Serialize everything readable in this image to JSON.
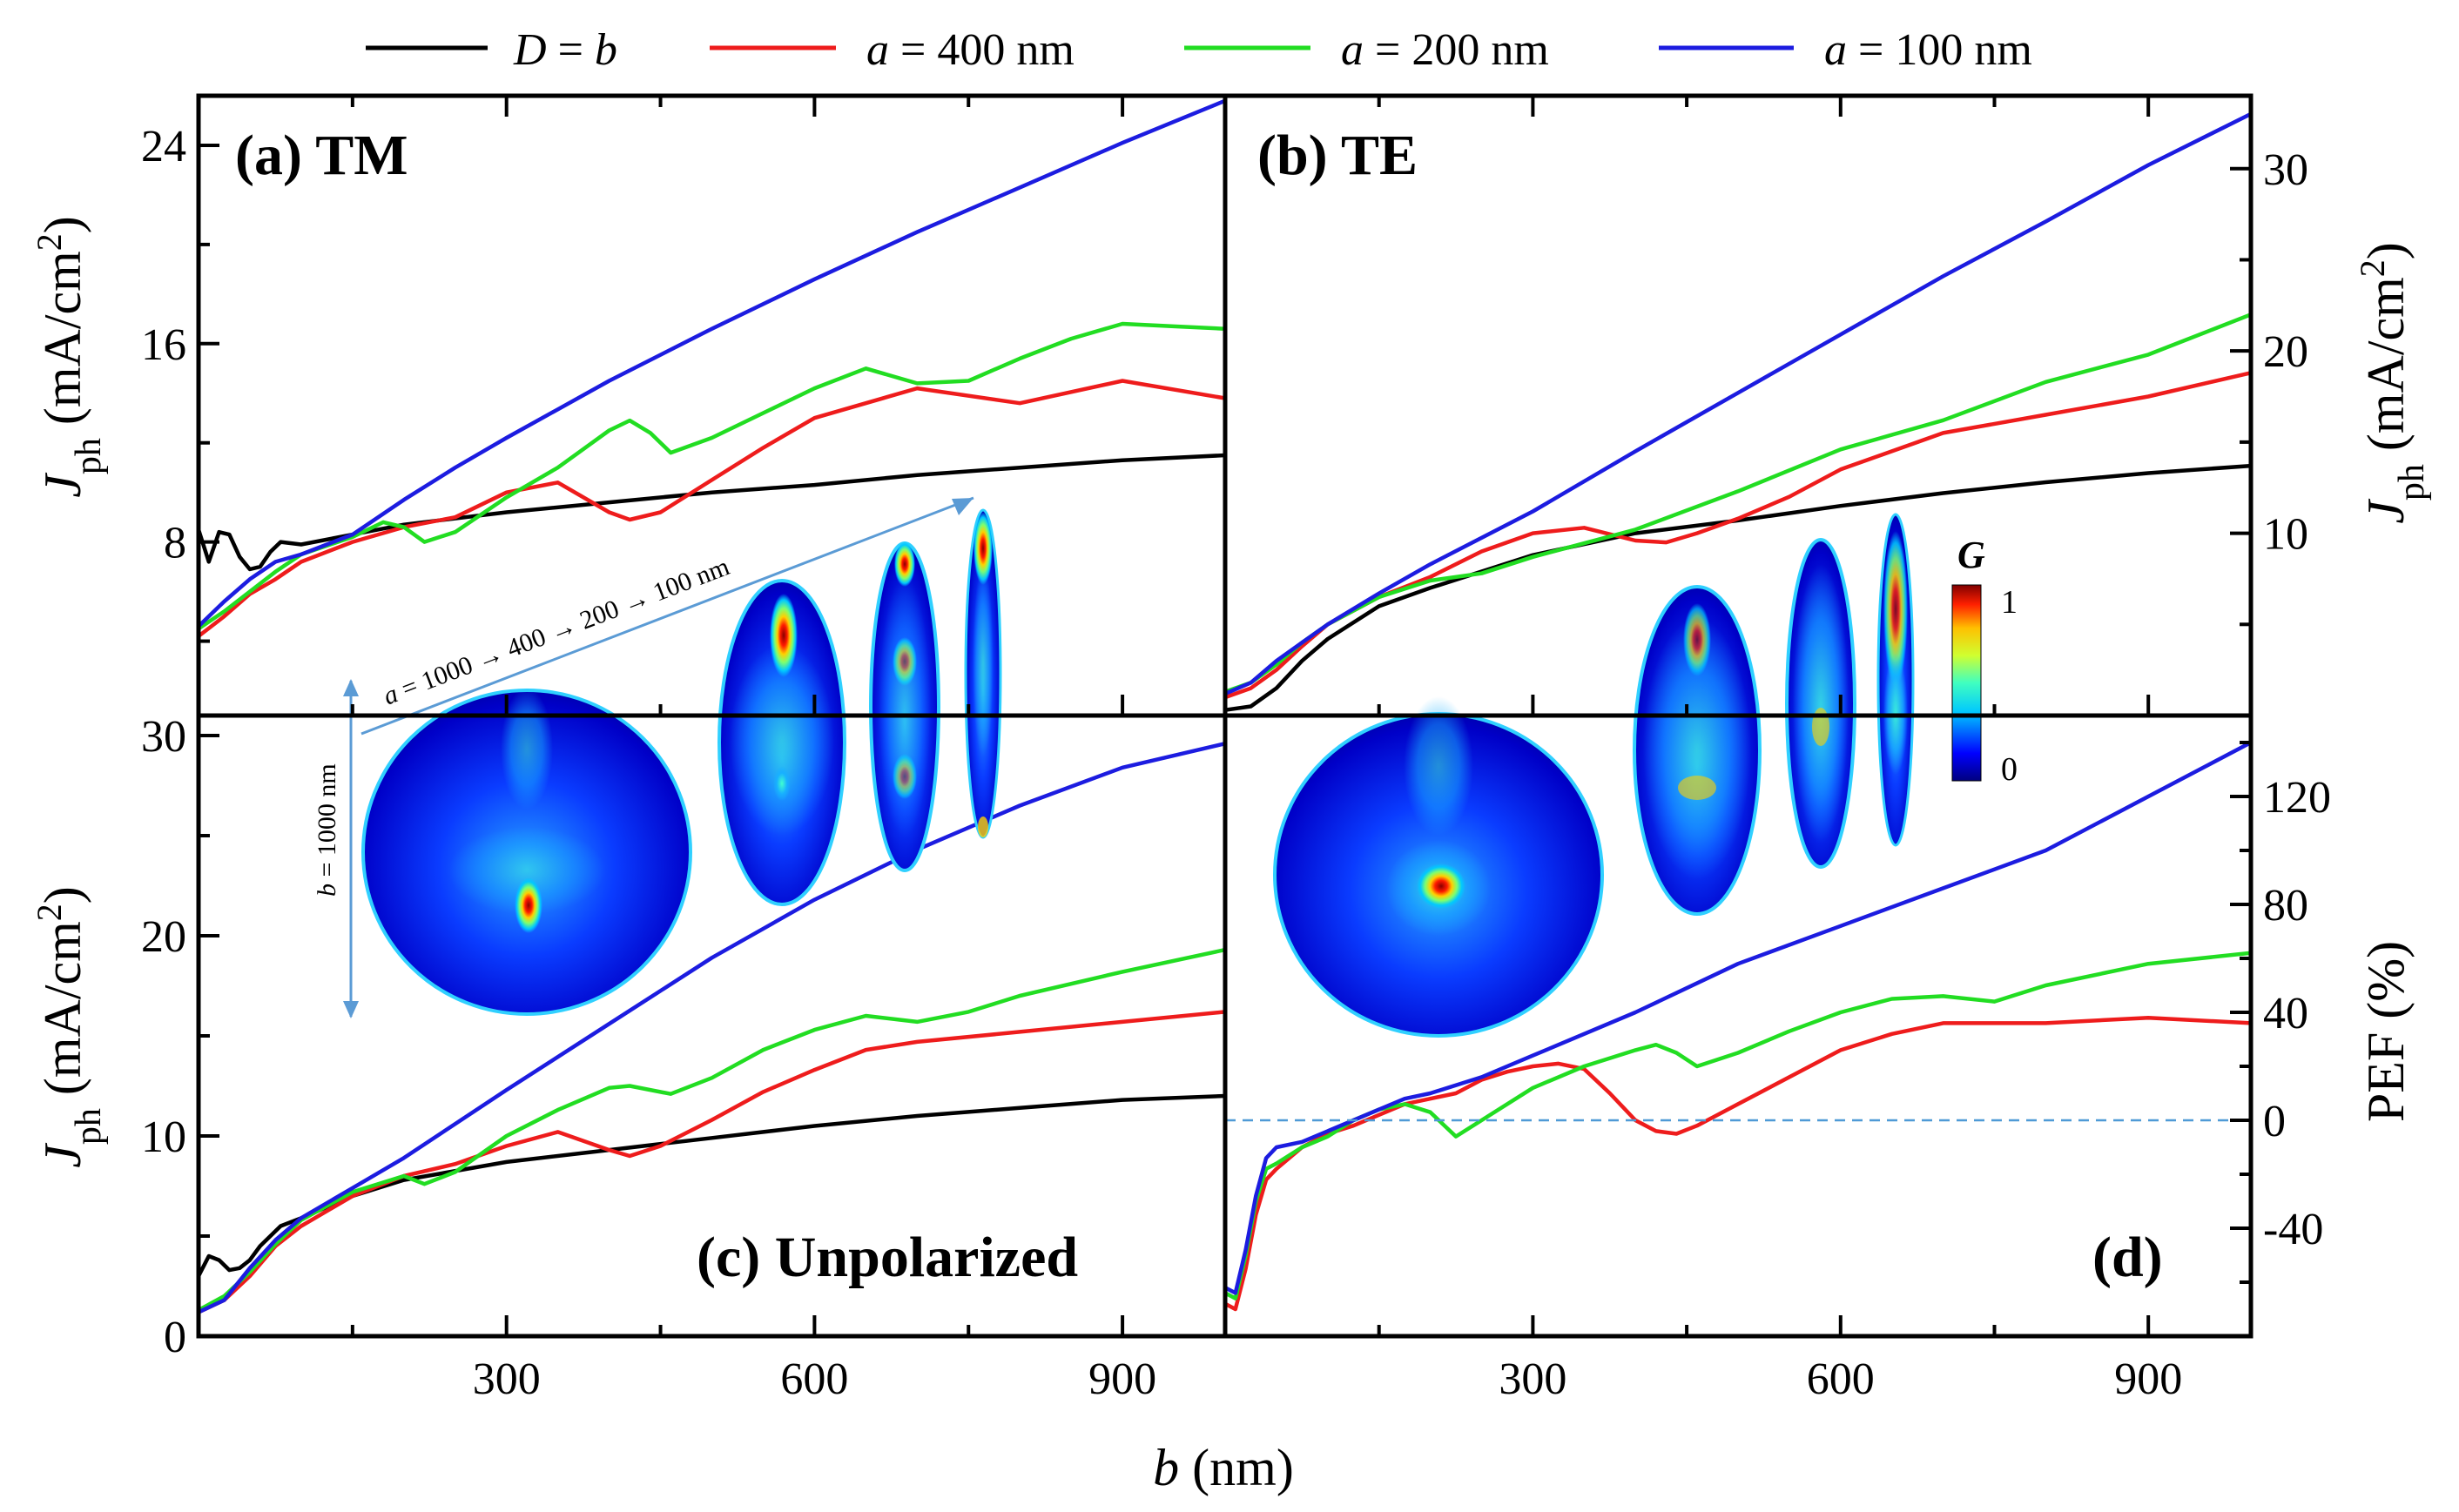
{
  "legend": [
    {
      "label_parts": [
        {
          "t": "D",
          "i": true
        },
        {
          "t": " = "
        },
        {
          "t": "b",
          "i": true
        }
      ],
      "color": "#000000",
      "key": "D_eq_b"
    },
    {
      "label_parts": [
        {
          "t": "a",
          "i": true
        },
        {
          "t": " = 400 nm"
        }
      ],
      "color": "#ee1c1c",
      "key": "a400"
    },
    {
      "label_parts": [
        {
          "t": "a",
          "i": true
        },
        {
          "t": " = 200 nm"
        }
      ],
      "color": "#22dd22",
      "key": "a200"
    },
    {
      "label_parts": [
        {
          "t": "a",
          "i": true
        },
        {
          "t": " = 100 nm"
        }
      ],
      "color": "#1c1ce0",
      "key": "a100"
    }
  ],
  "axes": {
    "xlabel_var": "b",
    "xlabel_unit": " (nm)",
    "x_ticks": [
      "300",
      "600",
      "900"
    ],
    "y_left_var": "J",
    "y_left_sub": "ph",
    "y_left_unit": " (mA/cm",
    "y_left_sup": "2",
    "y_left_close": ")",
    "y_right_pef": "PEF (%)",
    "ticks_a": [
      "8",
      "16",
      "24"
    ],
    "ticks_b": [
      "10",
      "20",
      "30"
    ],
    "ticks_c": [
      "0",
      "10",
      "20",
      "30"
    ],
    "ticks_d": [
      "-40",
      "0",
      "40",
      "80",
      "120"
    ]
  },
  "panels": {
    "a": "(a) TM",
    "b": "(b) TE",
    "c": "(c) Unpolarized",
    "d": "(d)"
  },
  "inset": {
    "arrow_text_parts": [
      {
        "t": "a",
        "i": true
      },
      {
        "t": " = 1000 → 400 → 200 → 100 nm"
      }
    ],
    "b_label_parts": [
      {
        "t": "b",
        "i": true
      },
      {
        "t": " = 1000 nm"
      }
    ],
    "colorbar_title": "G",
    "colorbar_max": "1",
    "colorbar_min": "0",
    "colormap": [
      "#00007f",
      "#0000ff",
      "#00c8ff",
      "#00ffd0",
      "#c8ff30",
      "#ffd000",
      "#ff3000",
      "#7f0000"
    ]
  },
  "chart_data": [
    {
      "type": "line",
      "title": "(a) TM",
      "xlabel": "b (nm)",
      "ylabel": "Jph (mA/cm2)",
      "xlim": [
        0,
        1000
      ],
      "ylim": [
        1,
        26
      ],
      "series": [
        {
          "name": "D = b",
          "x": [
            0,
            10,
            20,
            30,
            40,
            50,
            60,
            70,
            80,
            100,
            150,
            200,
            300,
            400,
            500,
            600,
            700,
            800,
            900,
            1000
          ],
          "y": [
            8.5,
            7.2,
            8.4,
            8.3,
            7.4,
            6.9,
            7.0,
            7.6,
            8.0,
            7.9,
            8.3,
            8.7,
            9.2,
            9.6,
            10.0,
            10.3,
            10.7,
            11.0,
            11.3,
            11.5
          ]
        },
        {
          "name": "a = 400 nm",
          "x": [
            0,
            25,
            50,
            75,
            100,
            150,
            200,
            250,
            300,
            350,
            400,
            420,
            450,
            500,
            550,
            600,
            700,
            800,
            900,
            1000
          ],
          "y": [
            4.2,
            5.0,
            5.9,
            6.5,
            7.2,
            8.0,
            8.6,
            9.0,
            10.0,
            10.4,
            9.2,
            8.9,
            9.2,
            10.5,
            11.8,
            13.0,
            14.2,
            13.6,
            14.5,
            13.8
          ]
        },
        {
          "name": "a = 200 nm",
          "x": [
            0,
            25,
            50,
            75,
            100,
            150,
            180,
            200,
            220,
            250,
            300,
            350,
            400,
            420,
            440,
            460,
            500,
            550,
            600,
            650,
            700,
            750,
            800,
            850,
            900,
            950,
            1000
          ],
          "y": [
            4.5,
            5.2,
            6.0,
            6.8,
            7.5,
            8.2,
            8.8,
            8.6,
            8.0,
            8.4,
            9.8,
            11.0,
            12.5,
            12.9,
            12.4,
            11.6,
            12.2,
            13.2,
            14.2,
            15.0,
            14.4,
            14.5,
            15.4,
            16.2,
            16.8,
            16.7,
            16.6
          ]
        },
        {
          "name": "a = 100 nm",
          "x": [
            0,
            25,
            50,
            75,
            100,
            150,
            200,
            250,
            300,
            400,
            500,
            600,
            700,
            800,
            900,
            1000
          ],
          "y": [
            4.6,
            5.6,
            6.5,
            7.2,
            7.5,
            8.3,
            9.7,
            11.0,
            12.2,
            14.5,
            16.6,
            18.6,
            20.5,
            22.3,
            24.1,
            25.8
          ]
        }
      ]
    },
    {
      "type": "line",
      "title": "(b) TE",
      "xlabel": "b (nm)",
      "ylabel": "Jph (mA/cm2)",
      "xlim": [
        0,
        1000
      ],
      "ylim": [
        0,
        34
      ],
      "series": [
        {
          "name": "D = b",
          "x": [
            0,
            25,
            50,
            75,
            100,
            150,
            200,
            300,
            400,
            500,
            600,
            700,
            800,
            900,
            1000
          ],
          "y": [
            0.3,
            0.5,
            1.5,
            3.0,
            4.2,
            6.0,
            7.0,
            8.8,
            10.0,
            10.7,
            11.5,
            12.2,
            12.8,
            13.3,
            13.7
          ]
        },
        {
          "name": "a = 400 nm",
          "x": [
            0,
            25,
            50,
            75,
            100,
            150,
            200,
            250,
            300,
            350,
            400,
            430,
            460,
            500,
            550,
            600,
            650,
            700,
            800,
            900,
            1000
          ],
          "y": [
            1.0,
            1.5,
            2.5,
            3.8,
            5.0,
            6.5,
            7.6,
            9.0,
            10.0,
            10.3,
            9.6,
            9.5,
            10.0,
            10.8,
            12.0,
            13.5,
            14.5,
            15.5,
            16.5,
            17.5,
            18.8
          ]
        },
        {
          "name": "a = 200 nm",
          "x": [
            0,
            25,
            50,
            75,
            100,
            150,
            200,
            250,
            300,
            400,
            500,
            600,
            700,
            800,
            900,
            1000
          ],
          "y": [
            1.3,
            1.8,
            2.8,
            4.0,
            5.0,
            6.5,
            7.4,
            7.8,
            8.7,
            10.2,
            12.3,
            14.6,
            16.2,
            18.3,
            19.8,
            22.0
          ]
        },
        {
          "name": "a = 100 nm",
          "x": [
            0,
            25,
            50,
            75,
            100,
            150,
            200,
            300,
            400,
            500,
            600,
            700,
            800,
            900,
            1000
          ],
          "y": [
            1.2,
            1.8,
            3.0,
            4.0,
            5.0,
            6.7,
            8.3,
            11.2,
            14.5,
            17.7,
            20.9,
            24.1,
            27.1,
            30.2,
            33.0
          ]
        }
      ]
    },
    {
      "type": "line",
      "title": "(c) Unpolarized",
      "xlabel": "b (nm)",
      "ylabel": "Jph (mA/cm2)",
      "xlim": [
        0,
        1000
      ],
      "ylim": [
        0,
        31
      ],
      "series": [
        {
          "name": "D = b",
          "x": [
            0,
            10,
            20,
            30,
            40,
            50,
            60,
            70,
            80,
            100,
            150,
            200,
            300,
            400,
            500,
            600,
            700,
            800,
            900,
            1000
          ],
          "y": [
            3.0,
            4.0,
            3.8,
            3.3,
            3.4,
            3.8,
            4.5,
            5.0,
            5.5,
            5.9,
            7.0,
            7.8,
            8.7,
            9.3,
            9.9,
            10.5,
            11.0,
            11.4,
            11.8,
            12.0
          ]
        },
        {
          "name": "a = 400 nm",
          "x": [
            0,
            25,
            50,
            75,
            100,
            150,
            200,
            250,
            300,
            350,
            400,
            420,
            450,
            500,
            550,
            600,
            650,
            700,
            800,
            900,
            1000
          ],
          "y": [
            1.2,
            1.8,
            3.0,
            4.5,
            5.5,
            7.0,
            8.0,
            8.6,
            9.5,
            10.2,
            9.3,
            9.0,
            9.5,
            10.8,
            12.2,
            13.3,
            14.3,
            14.7,
            15.2,
            15.7,
            16.2
          ]
        },
        {
          "name": "a = 200 nm",
          "x": [
            0,
            25,
            50,
            75,
            100,
            150,
            200,
            220,
            250,
            300,
            350,
            400,
            420,
            460,
            500,
            550,
            600,
            650,
            700,
            750,
            800,
            900,
            1000
          ],
          "y": [
            1.3,
            2.0,
            3.2,
            4.6,
            5.8,
            7.2,
            8.0,
            7.6,
            8.2,
            10.0,
            11.3,
            12.4,
            12.5,
            12.1,
            12.9,
            14.3,
            15.3,
            16.0,
            15.7,
            16.2,
            17.0,
            18.2,
            19.3
          ]
        },
        {
          "name": "a = 100 nm",
          "x": [
            0,
            25,
            50,
            75,
            100,
            150,
            200,
            300,
            400,
            500,
            600,
            700,
            800,
            900,
            1000
          ],
          "y": [
            1.2,
            1.8,
            3.4,
            4.8,
            5.9,
            7.4,
            8.9,
            12.3,
            15.6,
            18.9,
            21.8,
            24.3,
            26.5,
            28.4,
            29.6
          ]
        }
      ]
    },
    {
      "type": "line",
      "title": "(d)",
      "xlabel": "b (nm)",
      "ylabel": "PEF (%)",
      "xlim": [
        0,
        1000
      ],
      "ylim": [
        -80,
        150
      ],
      "reference_line": 0,
      "series": [
        {
          "name": "a = 400 nm",
          "x": [
            0,
            10,
            20,
            30,
            40,
            50,
            75,
            100,
            125,
            150,
            175,
            200,
            225,
            250,
            275,
            300,
            325,
            350,
            375,
            400,
            420,
            440,
            460,
            500,
            550,
            600,
            650,
            700,
            800,
            900,
            1000
          ],
          "y": [
            -68,
            -70,
            -55,
            -35,
            -22,
            -18,
            -10,
            -5,
            -2,
            2,
            6,
            8,
            10,
            15,
            18,
            20,
            21,
            19,
            10,
            0,
            -4,
            -5,
            -2,
            6,
            16,
            26,
            32,
            36,
            36,
            38,
            36
          ]
        },
        {
          "name": "a = 200 nm",
          "x": [
            0,
            10,
            20,
            30,
            40,
            50,
            75,
            100,
            125,
            150,
            175,
            200,
            225,
            250,
            300,
            350,
            400,
            420,
            440,
            460,
            500,
            550,
            600,
            650,
            700,
            750,
            800,
            900,
            1000
          ],
          "y": [
            -64,
            -66,
            -50,
            -30,
            -18,
            -16,
            -10,
            -6,
            0,
            4,
            6,
            3,
            -6,
            0,
            12,
            20,
            26,
            28,
            25,
            20,
            25,
            33,
            40,
            45,
            46,
            44,
            50,
            58,
            62
          ]
        },
        {
          "name": "a = 100 nm",
          "x": [
            0,
            10,
            20,
            30,
            40,
            50,
            75,
            100,
            125,
            150,
            175,
            200,
            250,
            300,
            400,
            500,
            600,
            700,
            800,
            900,
            1000
          ],
          "y": [
            -62,
            -64,
            -48,
            -28,
            -14,
            -10,
            -8,
            -4,
            0,
            4,
            8,
            10,
            16,
            24,
            40,
            58,
            72,
            86,
            100,
            120,
            140
          ]
        }
      ]
    }
  ]
}
